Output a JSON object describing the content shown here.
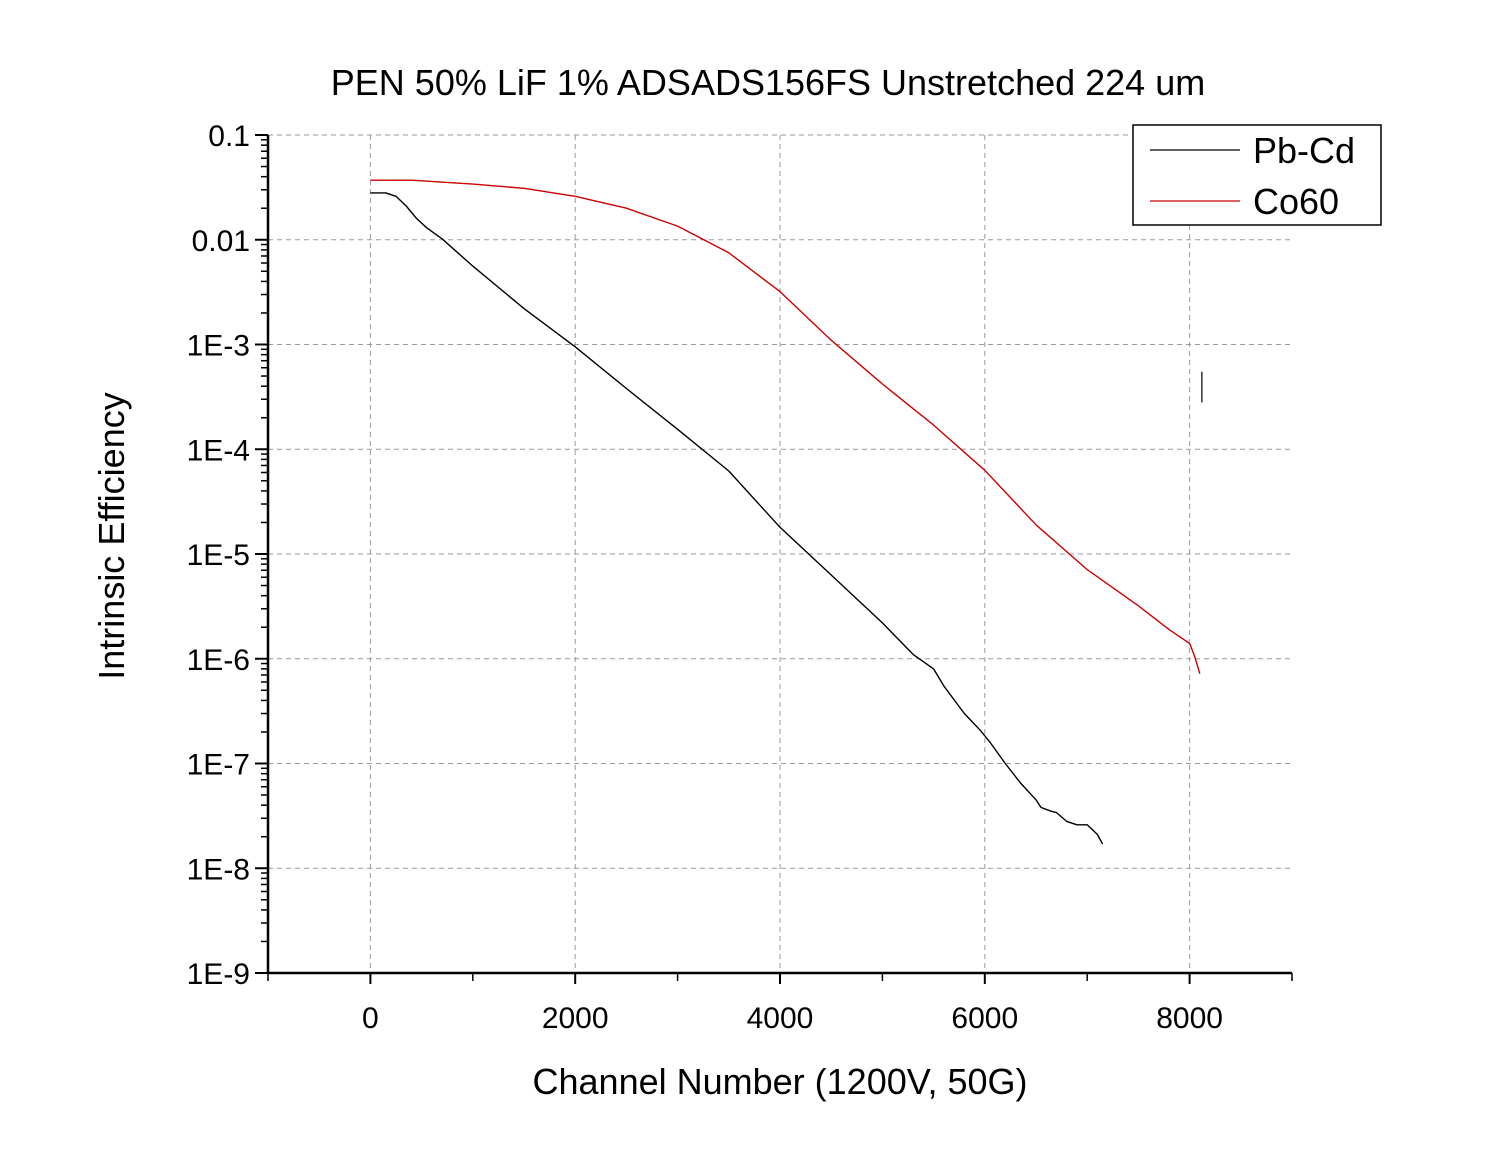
{
  "chart_data": {
    "type": "line",
    "title": "PEN 50% LiF 1% ADSADS156FS Unstretched 224 um",
    "xlabel": "Channel Number (1200V, 50G)",
    "ylabel": "Intrinsic Efficiency",
    "xlim": [
      -1000,
      9000
    ],
    "ylim": [
      1e-09,
      0.1
    ],
    "yscale": "log",
    "grid": true,
    "legend_position": "top-right",
    "x_ticks": [
      0,
      2000,
      4000,
      6000,
      8000
    ],
    "x_tick_labels": [
      "0",
      "2000",
      "4000",
      "6000",
      "8000"
    ],
    "y_ticks": [
      0.1,
      0.01,
      0.001,
      0.0001,
      1e-05,
      1e-06,
      1e-07,
      1e-08,
      1e-09
    ],
    "y_tick_labels": [
      "0.1",
      "0.01",
      "1E-3",
      "1E-4",
      "1E-5",
      "1E-6",
      "1E-7",
      "1E-8",
      "1E-9"
    ],
    "series": [
      {
        "name": "Pb-Cd",
        "color": "#000000",
        "x": [
          0,
          150,
          250,
          350,
          450,
          550,
          700,
          1000,
          1500,
          2000,
          2500,
          3000,
          3500,
          4000,
          4500,
          5000,
          5300,
          5500,
          5600,
          5800,
          5950,
          6050,
          6200,
          6350,
          6500,
          6550,
          6650,
          6700,
          6800,
          6900,
          7000,
          7100,
          7150
        ],
        "y": [
          0.028,
          0.028,
          0.026,
          0.021,
          0.016,
          0.013,
          0.0102,
          0.0056,
          0.0022,
          0.00095,
          0.00038,
          0.000155,
          6.2e-05,
          1.8e-05,
          6.3e-06,
          2.2e-06,
          1.1e-06,
          8e-07,
          5.5e-07,
          3e-07,
          2.1e-07,
          1.6e-07,
          1e-07,
          6.5e-08,
          4.5e-08,
          3.8e-08,
          3.5e-08,
          3.4e-08,
          2.8e-08,
          2.6e-08,
          2.6e-08,
          2.1e-08,
          1.7e-08
        ]
      },
      {
        "name": "Co60",
        "color": "#cc0000",
        "x": [
          0,
          400,
          1000,
          1500,
          2000,
          2500,
          3000,
          3500,
          4000,
          4500,
          5000,
          5500,
          6000,
          6500,
          7000,
          7500,
          7800,
          8000,
          8050,
          8100
        ],
        "y": [
          0.037,
          0.037,
          0.034,
          0.031,
          0.026,
          0.02,
          0.0135,
          0.0075,
          0.0032,
          0.0011,
          0.00042,
          0.00017,
          6.3e-05,
          1.9e-05,
          7.1e-06,
          3.2e-06,
          1.9e-06,
          1.4e-06,
          1.05e-06,
          7.2e-07
        ]
      }
    ],
    "annotations": [
      {
        "x": 8120,
        "y_top": 0.00055,
        "y_bottom": 0.00028
      }
    ]
  }
}
